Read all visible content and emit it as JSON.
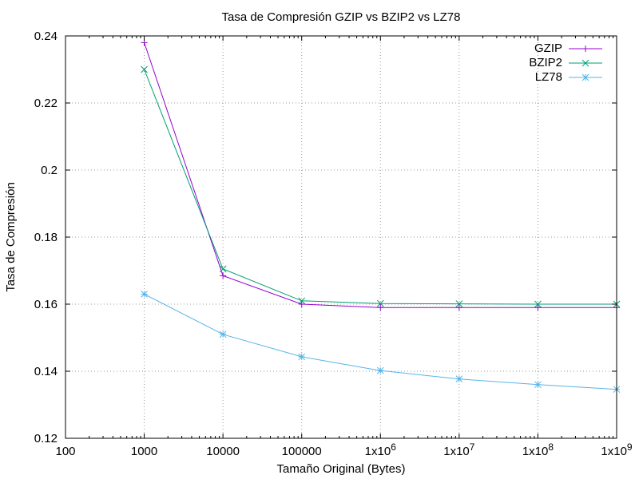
{
  "chart_data": {
    "type": "line",
    "title": "Tasa de Compresión GZIP vs BZIP2 vs LZ78",
    "xlabel": "Tamaño Original (Bytes)",
    "ylabel": "Tasa de Compresión",
    "x_scale": "log",
    "xlim": [
      100,
      1000000000
    ],
    "ylim": [
      0.12,
      0.24
    ],
    "grid": true,
    "legend_position": "top-right",
    "x_ticks": [
      {
        "value": 100,
        "label": "100"
      },
      {
        "value": 1000,
        "label": "1000"
      },
      {
        "value": 10000,
        "label": "10000"
      },
      {
        "value": 100000,
        "label": "100000"
      },
      {
        "value": 1000000,
        "label": "1x10",
        "exp": "6"
      },
      {
        "value": 10000000,
        "label": "1x10",
        "exp": "7"
      },
      {
        "value": 100000000,
        "label": "1x10",
        "exp": "8"
      },
      {
        "value": 1000000000,
        "label": "1x10",
        "exp": "9"
      }
    ],
    "y_ticks": [
      {
        "value": 0.12,
        "label": "0.12"
      },
      {
        "value": 0.14,
        "label": "0.14"
      },
      {
        "value": 0.16,
        "label": "0.16"
      },
      {
        "value": 0.18,
        "label": "0.18"
      },
      {
        "value": 0.2,
        "label": "0.2"
      },
      {
        "value": 0.22,
        "label": "0.22"
      },
      {
        "value": 0.24,
        "label": "0.24"
      }
    ],
    "x": [
      1000,
      10000,
      100000,
      1000000,
      10000000,
      100000000,
      1000000000
    ],
    "series": [
      {
        "name": "GZIP",
        "color": "#9400d3",
        "marker": "plus",
        "values": [
          0.238,
          0.1685,
          0.16,
          0.159,
          0.159,
          0.159,
          0.159
        ]
      },
      {
        "name": "BZIP2",
        "color": "#009e73",
        "marker": "cross",
        "values": [
          0.23,
          0.1705,
          0.161,
          0.1602,
          0.1601,
          0.16,
          0.16
        ]
      },
      {
        "name": "LZ78",
        "color": "#56b4e9",
        "marker": "star",
        "values": [
          0.163,
          0.151,
          0.1443,
          0.1402,
          0.1377,
          0.136,
          0.1346
        ]
      }
    ]
  }
}
